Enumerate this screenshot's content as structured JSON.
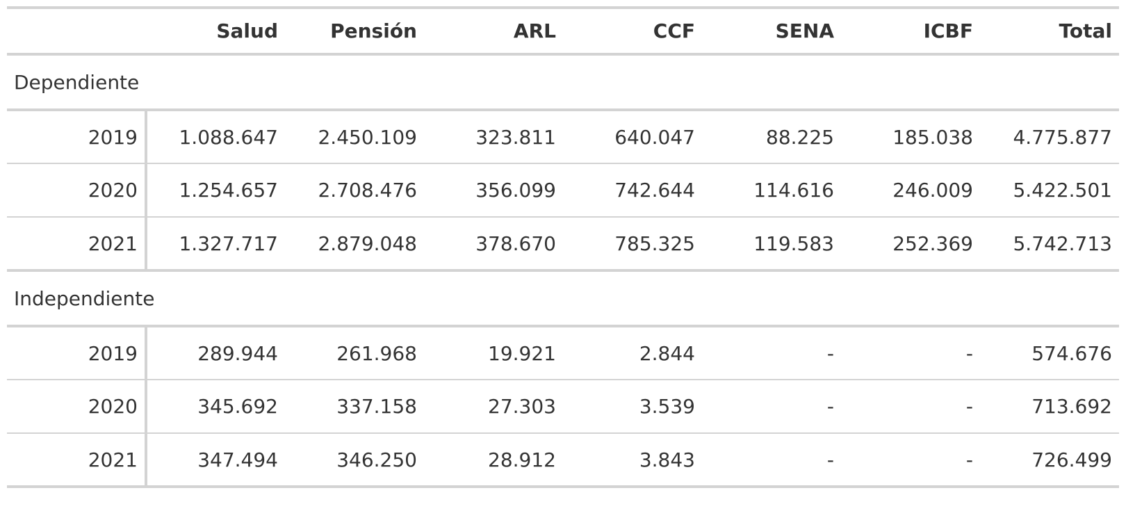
{
  "columns": [
    "",
    "Salud",
    "Pensión",
    "ARL",
    "CCF",
    "SENA",
    "ICBF",
    "Total"
  ],
  "groups": [
    {
      "label": "Dependiente",
      "rows": [
        {
          "year": "2019",
          "values": [
            "1.088.647",
            "2.450.109",
            "323.811",
            "640.047",
            "88.225",
            "185.038",
            "4.775.877"
          ]
        },
        {
          "year": "2020",
          "values": [
            "1.254.657",
            "2.708.476",
            "356.099",
            "742.644",
            "114.616",
            "246.009",
            "5.422.501"
          ]
        },
        {
          "year": "2021",
          "values": [
            "1.327.717",
            "2.879.048",
            "378.670",
            "785.325",
            "119.583",
            "252.369",
            "5.742.713"
          ]
        }
      ]
    },
    {
      "label": "Independiente",
      "rows": [
        {
          "year": "2019",
          "values": [
            "289.944",
            "261.968",
            "19.921",
            "2.844",
            "-",
            "-",
            "574.676"
          ]
        },
        {
          "year": "2020",
          "values": [
            "345.692",
            "337.158",
            "27.303",
            "3.539",
            "-",
            "-",
            "713.692"
          ]
        },
        {
          "year": "2021",
          "values": [
            "347.494",
            "346.250",
            "28.912",
            "3.843",
            "-",
            "-",
            "726.499"
          ]
        }
      ]
    }
  ]
}
